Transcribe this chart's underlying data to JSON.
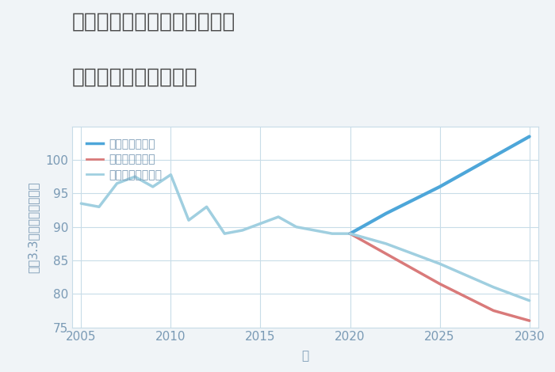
{
  "title_line1": "愛知県稲沢市平和町須ヶ谷の",
  "title_line2": "中古戸建ての価格推移",
  "xlabel": "年",
  "ylabel": "坪（3.3㎡）単価（万円）",
  "background_color": "#f0f4f7",
  "plot_background": "#ffffff",
  "historical_years": [
    2005,
    2006,
    2007,
    2008,
    2009,
    2010,
    2011,
    2012,
    2013,
    2014,
    2015,
    2016,
    2017,
    2018,
    2019,
    2020
  ],
  "historical_values": [
    93.5,
    93.0,
    96.5,
    97.5,
    96.0,
    97.8,
    91.0,
    93.0,
    89.0,
    89.5,
    90.5,
    91.5,
    90.0,
    89.5,
    89.0,
    89.0
  ],
  "forecast_years": [
    2020,
    2022,
    2025,
    2028,
    2030
  ],
  "good_values": [
    89.0,
    92.0,
    96.0,
    100.5,
    103.5
  ],
  "bad_values": [
    89.0,
    86.0,
    81.5,
    77.5,
    76.0
  ],
  "normal_values": [
    89.0,
    87.5,
    84.5,
    81.0,
    79.0
  ],
  "good_color": "#4da6d9",
  "bad_color": "#d97a7a",
  "normal_color": "#a0cfe0",
  "historical_color": "#a0cfe0",
  "legend_good": "グッドシナリオ",
  "legend_bad": "バッドシナリオ",
  "legend_normal": "ノーマルシナリオ",
  "ylim": [
    75,
    105
  ],
  "yticks": [
    75,
    80,
    85,
    90,
    95,
    100
  ],
  "xlim": [
    2004.5,
    2030.5
  ],
  "xticks": [
    2005,
    2010,
    2015,
    2020,
    2025,
    2030
  ],
  "grid_color": "#c8dce8",
  "title_color": "#4a4a4a",
  "axis_color": "#7a9ab5",
  "tick_color": "#7a9ab5",
  "title_fontsize": 19,
  "label_fontsize": 11,
  "tick_fontsize": 11,
  "legend_fontsize": 10
}
